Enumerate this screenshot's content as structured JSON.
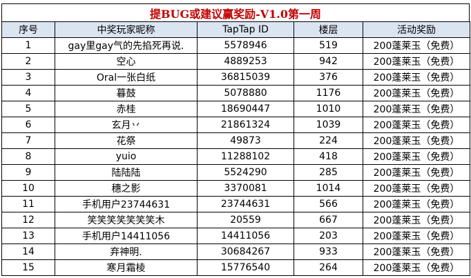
{
  "title": "提BUG或建议赢奖励-V1.0第一周",
  "columns": [
    "序号",
    "中奖玩家昵称",
    "TapTap ID",
    "楼层",
    "活动奖励"
  ],
  "rows": [
    {
      "no": "1",
      "nickname": "gay里gay气的先掐死再说.",
      "taptap_id": "5578946",
      "floor": "519",
      "reward": "200蓬莱玉（免费）"
    },
    {
      "no": "2",
      "nickname": "空心",
      "taptap_id": "4889253",
      "floor": "942",
      "reward": "200蓬莱玉（免费）"
    },
    {
      "no": "3",
      "nickname": "Oral一张白纸",
      "taptap_id": "36815039",
      "floor": "376",
      "reward": "200蓬莱玉（免费）"
    },
    {
      "no": "4",
      "nickname": "暮鼓",
      "taptap_id": "5078880",
      "floor": "1176",
      "reward": "200蓬莱玉（免费）"
    },
    {
      "no": "5",
      "nickname": "赤桂",
      "taptap_id": "18690447",
      "floor": "1010",
      "reward": "200蓬莱玉（免费）"
    },
    {
      "no": "6",
      "nickname": "玄月丷",
      "taptap_id": "21861324",
      "floor": "1039",
      "reward": "200蓬莱玉（免费）"
    },
    {
      "no": "7",
      "nickname": "花祭",
      "taptap_id": "49873",
      "floor": "224",
      "reward": "200蓬莱玉（免费）"
    },
    {
      "no": "8",
      "nickname": "yuio",
      "taptap_id": "11288102",
      "floor": "418",
      "reward": "200蓬莱玉（免费）"
    },
    {
      "no": "9",
      "nickname": "陆陆陆",
      "taptap_id": "5524290",
      "floor": "285",
      "reward": "200蓬莱玉（免费）"
    },
    {
      "no": "10",
      "nickname": "穗之影",
      "taptap_id": "3370081",
      "floor": "1014",
      "reward": "200蓬莱玉（免费）"
    },
    {
      "no": "11",
      "nickname": "手机用户23744631",
      "taptap_id": "23744631",
      "floor": "566",
      "reward": "200蓬莱玉（免费）"
    },
    {
      "no": "12",
      "nickname": "笑笑笑笑笑笑笑木",
      "taptap_id": "20559",
      "floor": "667",
      "reward": "200蓬莱玉（免费）"
    },
    {
      "no": "13",
      "nickname": "手机用户14411056",
      "taptap_id": "14411056",
      "floor": "203",
      "reward": "200蓬莱玉（免费）"
    },
    {
      "no": "14",
      "nickname": "弃神明.",
      "taptap_id": "30684267",
      "floor": "933",
      "reward": "200蓬莱玉（免费）"
    },
    {
      "no": "15",
      "nickname": "寒月霜棱",
      "taptap_id": "15776540",
      "floor": "264",
      "reward": "200蓬莱玉（免费）"
    }
  ],
  "colors": {
    "title": "#c00000",
    "header_bg": "#dbe5f1",
    "border": "#000000"
  }
}
